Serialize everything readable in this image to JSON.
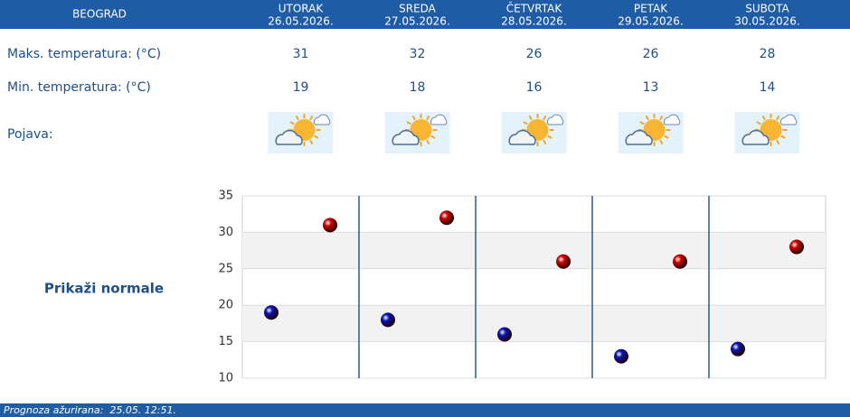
{
  "header": {
    "city": "BEOGRAD",
    "days": [
      {
        "name": "UTORAK",
        "date": "26.05.2026."
      },
      {
        "name": "SREDA",
        "date": "27.05.2026."
      },
      {
        "name": "ČETVRTAK",
        "date": "28.05.2026."
      },
      {
        "name": "PETAK",
        "date": "29.05.2026."
      },
      {
        "name": "SUBOTA",
        "date": "30.05.2026."
      }
    ]
  },
  "rows": {
    "max_label": "Maks. temperatura: (°C)",
    "min_label": "Min. temperatura: (°C)",
    "appearance_label": "Pojava:"
  },
  "normals_link": "Prikaži normale",
  "footer": "Prognoza ažurirana:  25.05. 12:51.",
  "chart_data": {
    "type": "scatter",
    "series": [
      {
        "color": "#d40000",
        "values": [
          31,
          32,
          26,
          26,
          28
        ]
      },
      {
        "color": "#0a14b4",
        "values": [
          19,
          18,
          16,
          13,
          14
        ]
      }
    ],
    "ylim": [
      10,
      35
    ],
    "yticks": [
      10,
      15,
      20,
      25,
      30,
      35
    ],
    "grid": true
  }
}
